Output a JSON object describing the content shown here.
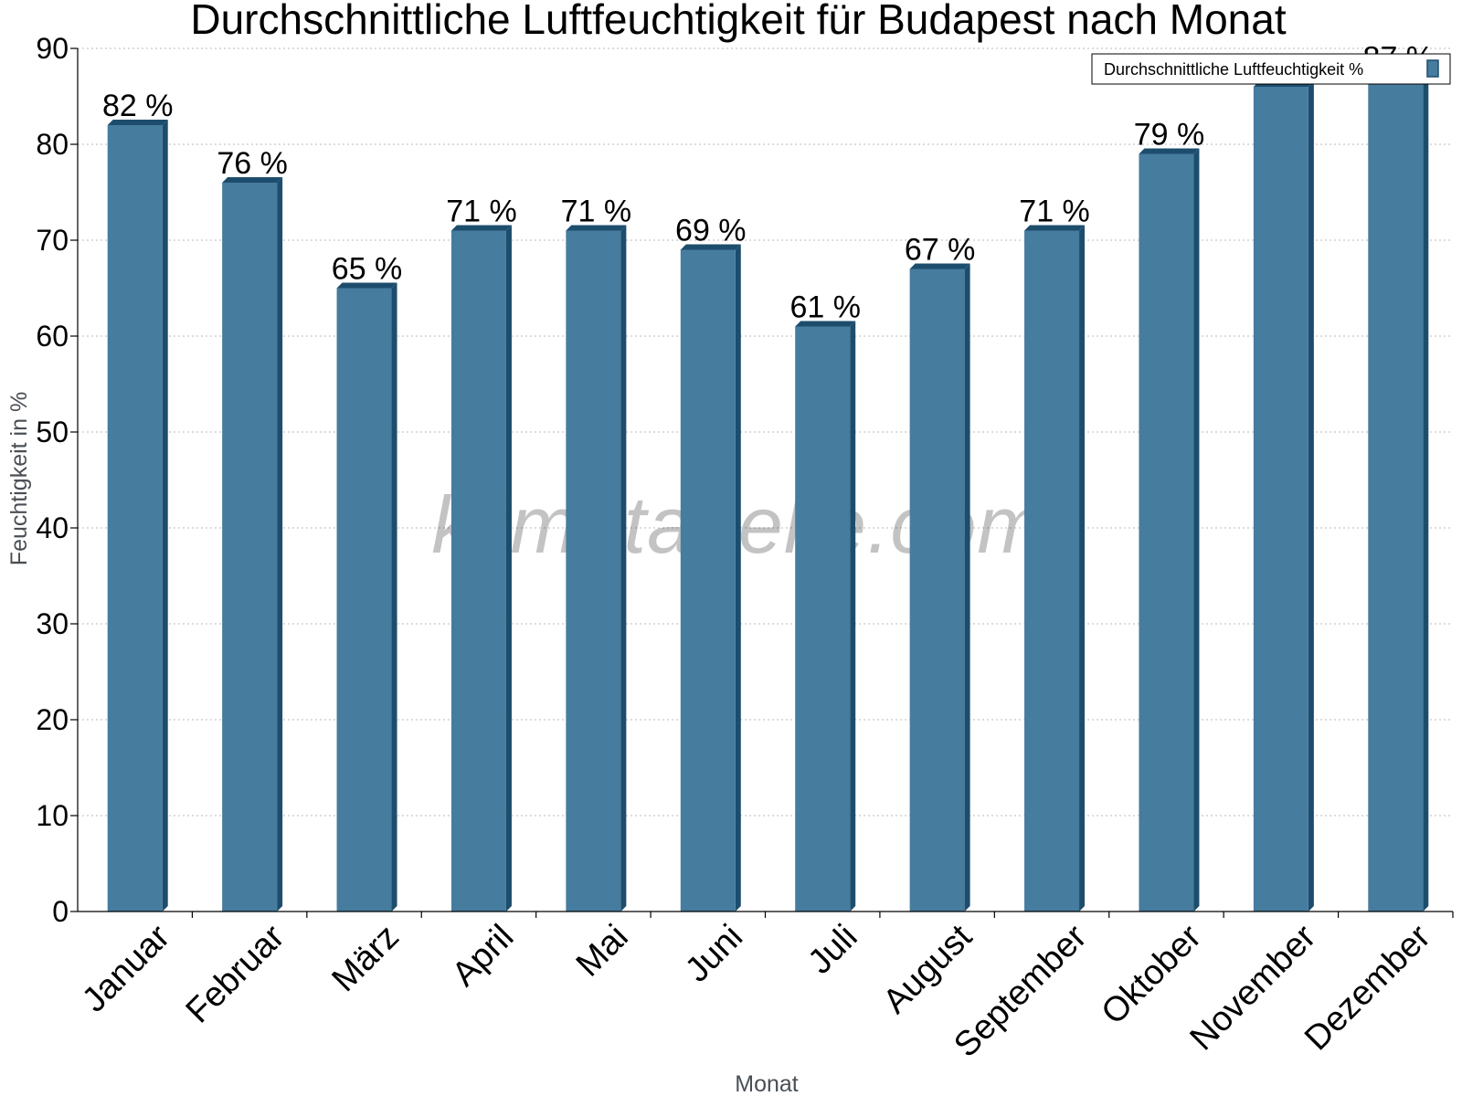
{
  "chart_data": {
    "type": "bar",
    "title": "Durchschnittliche Luftfeuchtigkeit für Budapest nach Monat",
    "xlabel": "Monat",
    "ylabel": "Feuchtigkeit in %",
    "categories": [
      "Januar",
      "Februar",
      "März",
      "April",
      "Mai",
      "Juni",
      "Juli",
      "August",
      "September",
      "Oktober",
      "November",
      "Dezember"
    ],
    "series": [
      {
        "name": "Durchschnittliche Luftfeuchtigkeit %",
        "values": [
          82,
          76,
          65,
          71,
          71,
          69,
          61,
          67,
          71,
          79,
          86,
          87
        ],
        "labels": [
          "82 %",
          "76 %",
          "65 %",
          "71 %",
          "71 %",
          "69 %",
          "61 %",
          "67 %",
          "71 %",
          "79 %",
          "",
          "87 %"
        ],
        "color": "#467c9e",
        "edge_color": "#1d4d6d"
      }
    ],
    "ylim": [
      0,
      90
    ],
    "yticks": [
      0,
      10,
      20,
      30,
      40,
      50,
      60,
      70,
      80,
      90
    ],
    "grid": true,
    "legend_position": "top-right"
  },
  "watermark": "klimatabelle.com"
}
